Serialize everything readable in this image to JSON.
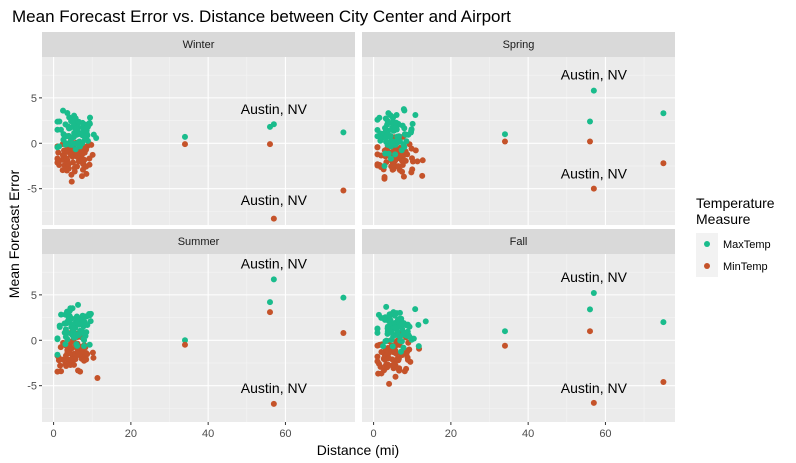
{
  "chart_data": {
    "type": "scatter",
    "title": "Mean Forecast Error vs. Distance between City Center and Airport",
    "xlabel": "Distance (mi)",
    "ylabel": "Mean Forecast Error",
    "xlim": [
      -3,
      78
    ],
    "ylim": [
      -9,
      9.5
    ],
    "x_ticks": [
      0,
      20,
      40,
      60
    ],
    "y_ticks": [
      -5,
      0,
      5
    ],
    "grid": true,
    "legend": {
      "title_line1": "Temperature",
      "title_line2": "Measure",
      "placement": "right"
    },
    "series": [
      {
        "name": "MaxTemp",
        "color": "#1ABC8C"
      },
      {
        "name": "MinTemp",
        "color": "#C5532A"
      }
    ],
    "panels": [
      {
        "label": "Winter",
        "outliers": [
          {
            "series": "MaxTemp",
            "x": 34,
            "y": 0.7
          },
          {
            "series": "MinTemp",
            "x": 34,
            "y": -0.1
          },
          {
            "series": "MaxTemp",
            "x": 56,
            "y": 1.8
          },
          {
            "series": "MinTemp",
            "x": 56,
            "y": -0.1
          },
          {
            "series": "MaxTemp",
            "x": 57,
            "y": 2.1
          },
          {
            "series": "MinTemp",
            "x": 57,
            "y": -8.3
          },
          {
            "series": "MaxTemp",
            "x": 75,
            "y": 1.2
          },
          {
            "series": "MinTemp",
            "x": 75,
            "y": -5.2
          }
        ],
        "annotations": [
          {
            "text": "Austin, NV",
            "x": 57,
            "y": 3.2
          },
          {
            "text": "Austin, NV",
            "x": 57,
            "y": -6.8
          }
        ]
      },
      {
        "label": "Spring",
        "outliers": [
          {
            "series": "MaxTemp",
            "x": 34,
            "y": 1.0
          },
          {
            "series": "MinTemp",
            "x": 34,
            "y": 0.2
          },
          {
            "series": "MaxTemp",
            "x": 56,
            "y": 2.4
          },
          {
            "series": "MinTemp",
            "x": 56,
            "y": 0.2
          },
          {
            "series": "MaxTemp",
            "x": 57,
            "y": 5.8
          },
          {
            "series": "MinTemp",
            "x": 57,
            "y": -5.0
          },
          {
            "series": "MaxTemp",
            "x": 75,
            "y": 3.3
          },
          {
            "series": "MinTemp",
            "x": 75,
            "y": -2.2
          }
        ],
        "annotations": [
          {
            "text": "Austin, NV",
            "x": 57,
            "y": 7.0
          },
          {
            "text": "Austin, NV",
            "x": 57,
            "y": -3.9
          }
        ]
      },
      {
        "label": "Summer",
        "outliers": [
          {
            "series": "MaxTemp",
            "x": 34,
            "y": 0.0
          },
          {
            "series": "MinTemp",
            "x": 34,
            "y": -0.5
          },
          {
            "series": "MaxTemp",
            "x": 56,
            "y": 4.2
          },
          {
            "series": "MinTemp",
            "x": 56,
            "y": 3.1
          },
          {
            "series": "MaxTemp",
            "x": 57,
            "y": 6.7
          },
          {
            "series": "MinTemp",
            "x": 57,
            "y": -7.0
          },
          {
            "series": "MaxTemp",
            "x": 75,
            "y": 4.7
          },
          {
            "series": "MinTemp",
            "x": 75,
            "y": 0.8
          }
        ],
        "annotations": [
          {
            "text": "Austin, NV",
            "x": 57,
            "y": 7.9
          },
          {
            "text": "Austin, NV",
            "x": 57,
            "y": -5.8
          }
        ]
      },
      {
        "label": "Fall",
        "outliers": [
          {
            "series": "MaxTemp",
            "x": 34,
            "y": 1.0
          },
          {
            "series": "MinTemp",
            "x": 34,
            "y": -0.6
          },
          {
            "series": "MaxTemp",
            "x": 56,
            "y": 3.4
          },
          {
            "series": "MinTemp",
            "x": 56,
            "y": 1.0
          },
          {
            "series": "MaxTemp",
            "x": 57,
            "y": 5.2
          },
          {
            "series": "MinTemp",
            "x": 57,
            "y": -6.9
          },
          {
            "series": "MaxTemp",
            "x": 75,
            "y": 2.0
          },
          {
            "series": "MinTemp",
            "x": 75,
            "y": -4.6
          }
        ],
        "annotations": [
          {
            "text": "Austin, NV",
            "x": 57,
            "y": 6.4
          },
          {
            "text": "Austin, NV",
            "x": 57,
            "y": -5.8
          }
        ]
      }
    ]
  }
}
